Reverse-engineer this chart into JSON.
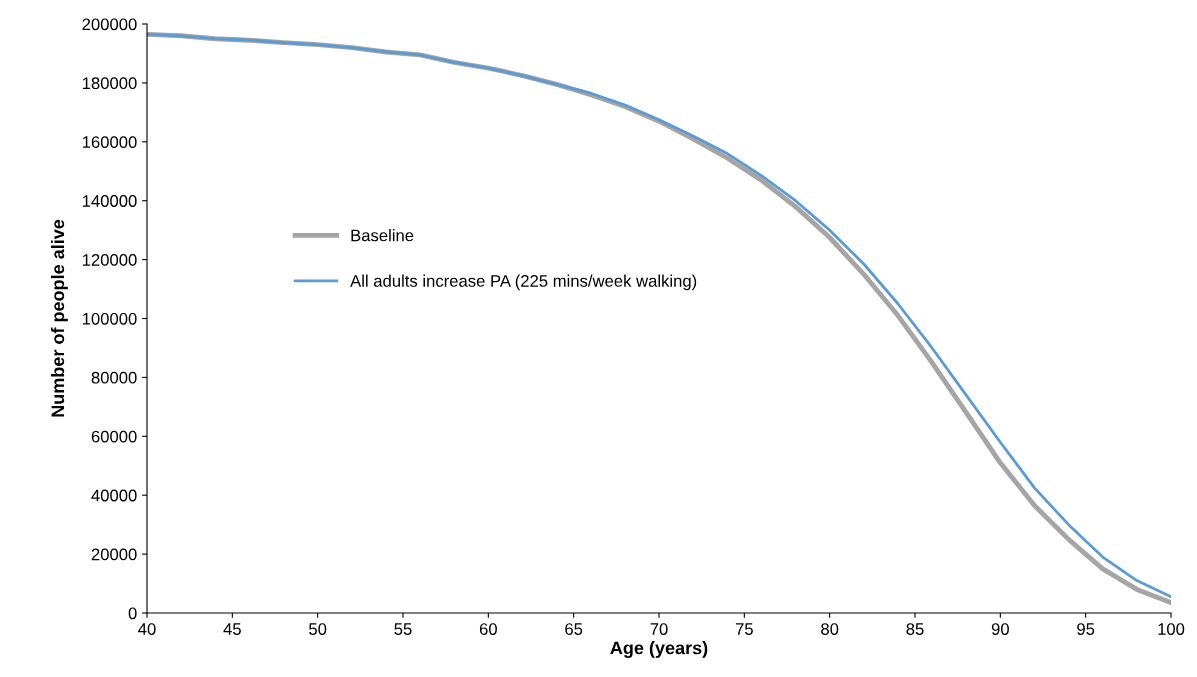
{
  "chart_data": {
    "type": "line",
    "xlabel": "Age (years)",
    "ylabel": "Number of people alive",
    "x": [
      40,
      42,
      44,
      46,
      48,
      50,
      52,
      54,
      56,
      58,
      60,
      62,
      64,
      66,
      68,
      70,
      72,
      74,
      76,
      78,
      80,
      82,
      84,
      86,
      88,
      90,
      92,
      94,
      96,
      98,
      100
    ],
    "series": [
      {
        "name": "Baseline",
        "color": "#a5a5a5",
        "values": [
          196500,
          196000,
          195000,
          194500,
          193700,
          193000,
          192000,
          190500,
          189500,
          187000,
          185000,
          182500,
          179500,
          176000,
          172000,
          167000,
          161000,
          154500,
          147000,
          138000,
          127500,
          115000,
          101000,
          85000,
          68000,
          51000,
          36500,
          25000,
          15000,
          8000,
          3500
        ]
      },
      {
        "name": "All adults increase PA (225 mins/week walking)",
        "color": "#5b9bd5",
        "values": [
          196500,
          196000,
          195000,
          194500,
          193700,
          193000,
          192000,
          190500,
          189500,
          187000,
          185000,
          182500,
          179500,
          176500,
          172500,
          167500,
          162000,
          156000,
          148500,
          140000,
          130000,
          118500,
          105000,
          90000,
          74000,
          58000,
          42500,
          30000,
          19000,
          11000,
          5500
        ]
      }
    ],
    "xlim": [
      40,
      100
    ],
    "xticks": [
      40,
      45,
      50,
      55,
      60,
      65,
      70,
      75,
      80,
      85,
      90,
      95,
      100
    ],
    "ylim": [
      0,
      200000
    ],
    "yticks": [
      0,
      20000,
      40000,
      60000,
      80000,
      100000,
      120000,
      140000,
      160000,
      180000,
      200000
    ],
    "grid": false,
    "legend": "left",
    "marker": "none",
    "line_style": "solid"
  }
}
